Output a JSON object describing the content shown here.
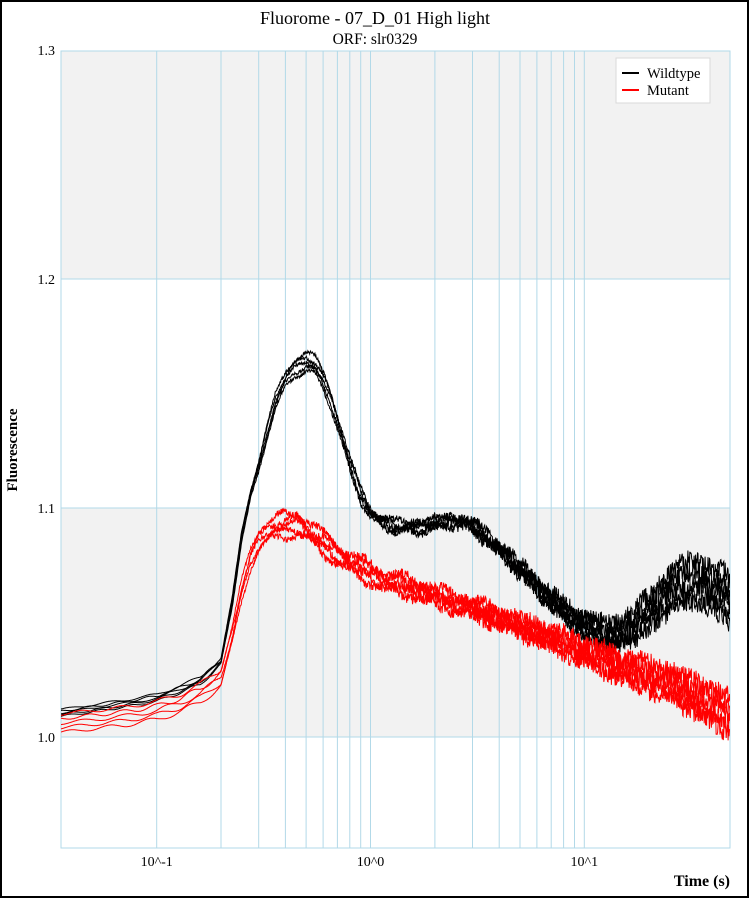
{
  "figure": {
    "title": "Fluorome - 07_D_01 High light",
    "subtitle": "ORF: slr0329"
  },
  "chart_data": {
    "type": "line",
    "x_scale": "log10",
    "title": "Fluorome - 07_D_01 High light",
    "subtitle": "ORF: slr0329",
    "xlabel": "Time (s)",
    "ylabel": "Fluorescence",
    "xlim": [
      0.0357,
      48
    ],
    "ylim": [
      0.9515,
      1.2996
    ],
    "x_ticks": [
      {
        "value": 0.1,
        "label": "10^-1"
      },
      {
        "value": 1,
        "label": "10^0"
      },
      {
        "value": 10,
        "label": "10^1"
      }
    ],
    "y_ticks": [
      {
        "value": 1.0,
        "label": "1.0"
      },
      {
        "value": 1.1,
        "label": "1.1"
      },
      {
        "value": 1.2,
        "label": "1.2"
      },
      {
        "value": 1.3,
        "label": "1.3"
      }
    ],
    "x_gridlines": [
      0.1,
      0.2,
      0.3,
      0.4,
      0.5,
      0.6,
      0.7,
      0.8,
      0.9,
      1,
      2,
      3,
      4,
      5,
      6,
      7,
      8,
      9,
      10
    ],
    "y_gridlines": [
      1.0,
      1.1,
      1.2
    ],
    "bands": [
      {
        "from": 1.2,
        "to": 1.2996
      },
      {
        "from": 1.0,
        "to": 1.1
      }
    ],
    "legend": {
      "position": "top-right",
      "entries": [
        {
          "label": "Wildtype",
          "color": "#000000"
        },
        {
          "label": "Mutant",
          "color": "#ff0000"
        }
      ]
    },
    "style": {
      "grid_color": "#b2d9e8",
      "band_color": "#f2f2f2",
      "plot_bg": "#ffffff",
      "figure_border": "#000000",
      "legend_border": "#d9d9d9"
    },
    "series": [
      {
        "name": "Wildtype",
        "color": "#000000",
        "replicates": 5,
        "keypoints": [
          [
            0.0357,
            1.0105
          ],
          [
            0.05,
            1.0125
          ],
          [
            0.07,
            1.0145
          ],
          [
            0.1,
            1.017
          ],
          [
            0.13,
            1.021
          ],
          [
            0.16,
            1.0245
          ],
          [
            0.2,
            1.033
          ],
          [
            0.225,
            1.058
          ],
          [
            0.25,
            1.088
          ],
          [
            0.275,
            1.106
          ],
          [
            0.3,
            1.118
          ],
          [
            0.33,
            1.134
          ],
          [
            0.36,
            1.147
          ],
          [
            0.4,
            1.156
          ],
          [
            0.44,
            1.161
          ],
          [
            0.5,
            1.164
          ],
          [
            0.55,
            1.162
          ],
          [
            0.6,
            1.156
          ],
          [
            0.65,
            1.148
          ],
          [
            0.7,
            1.138
          ],
          [
            0.8,
            1.119
          ],
          [
            0.9,
            1.106
          ],
          [
            1.0,
            1.098
          ],
          [
            1.1,
            1.0945
          ],
          [
            1.3,
            1.092
          ],
          [
            1.6,
            1.0915
          ],
          [
            2.0,
            1.093
          ],
          [
            2.4,
            1.0945
          ],
          [
            2.8,
            1.0935
          ],
          [
            3.2,
            1.09
          ],
          [
            3.6,
            1.086
          ],
          [
            4.0,
            1.082
          ],
          [
            4.5,
            1.0775
          ],
          [
            5.0,
            1.0735
          ],
          [
            6.0,
            1.066
          ],
          [
            7.0,
            1.06
          ],
          [
            8.0,
            1.0555
          ],
          [
            9.0,
            1.0515
          ],
          [
            10,
            1.049
          ],
          [
            11,
            1.047
          ],
          [
            12,
            1.0455
          ],
          [
            13.5,
            1.0445
          ],
          [
            15,
            1.0455
          ],
          [
            17,
            1.049
          ],
          [
            20,
            1.0545
          ],
          [
            23,
            1.06
          ],
          [
            26,
            1.0645
          ],
          [
            30,
            1.0675
          ],
          [
            34,
            1.0675
          ],
          [
            38,
            1.0655
          ],
          [
            42,
            1.0635
          ],
          [
            45,
            1.0625
          ],
          [
            48,
            1.0575
          ]
        ],
        "spread": [
          [
            0.0357,
            0.0015
          ],
          [
            0.2,
            0.0015
          ],
          [
            0.35,
            0.003
          ],
          [
            0.5,
            0.004
          ],
          [
            0.8,
            0.0028
          ],
          [
            1.2,
            0.002
          ],
          [
            3,
            0.002
          ],
          [
            6,
            0.0028
          ],
          [
            10,
            0.004
          ],
          [
            15,
            0.0055
          ],
          [
            22,
            0.008
          ],
          [
            30,
            0.009
          ],
          [
            48,
            0.0095
          ]
        ],
        "noise": [
          [
            0.0357,
            0
          ],
          [
            0.18,
            0
          ],
          [
            0.3,
            0.0005
          ],
          [
            0.5,
            0.0008
          ],
          [
            0.8,
            0.0012
          ],
          [
            1.5,
            0.0016
          ],
          [
            2.5,
            0.002
          ],
          [
            4,
            0.0028
          ],
          [
            6,
            0.0033
          ],
          [
            10,
            0.0038
          ],
          [
            20,
            0.0045
          ],
          [
            48,
            0.0047
          ]
        ],
        "wobble": [
          [
            0.0357,
            0.0004
          ],
          [
            0.3,
            0.0008
          ],
          [
            0.7,
            0.0012
          ],
          [
            1.5,
            0.0015
          ],
          [
            3,
            0.0012
          ],
          [
            6,
            0.0008
          ],
          [
            48,
            0.0005
          ]
        ]
      },
      {
        "name": "Mutant",
        "color": "#ff0000",
        "replicates": 5,
        "keypoints": [
          [
            0.0357,
            1.006
          ],
          [
            0.05,
            1.0075
          ],
          [
            0.07,
            1.009
          ],
          [
            0.1,
            1.0115
          ],
          [
            0.13,
            1.015
          ],
          [
            0.16,
            1.019
          ],
          [
            0.2,
            1.026
          ],
          [
            0.225,
            1.044
          ],
          [
            0.25,
            1.064
          ],
          [
            0.275,
            1.078
          ],
          [
            0.3,
            1.0855
          ],
          [
            0.33,
            1.0895
          ],
          [
            0.36,
            1.0915
          ],
          [
            0.4,
            1.0925
          ],
          [
            0.45,
            1.093
          ],
          [
            0.5,
            1.091
          ],
          [
            0.55,
            1.0875
          ],
          [
            0.6,
            1.0845
          ],
          [
            0.7,
            1.08
          ],
          [
            0.8,
            1.0765
          ],
          [
            0.9,
            1.0735
          ],
          [
            1.0,
            1.0715
          ],
          [
            1.2,
            1.068
          ],
          [
            1.5,
            1.0655
          ],
          [
            2.0,
            1.0615
          ],
          [
            2.5,
            1.0585
          ],
          [
            3.0,
            1.056
          ],
          [
            4.0,
            1.052
          ],
          [
            5.0,
            1.0485
          ],
          [
            6.0,
            1.0455
          ],
          [
            7.0,
            1.043
          ],
          [
            8.0,
            1.041
          ],
          [
            10,
            1.037
          ],
          [
            12,
            1.034
          ],
          [
            15,
            1.0305
          ],
          [
            18,
            1.028
          ],
          [
            22,
            1.025
          ],
          [
            26,
            1.0225
          ],
          [
            30,
            1.0195
          ],
          [
            35,
            1.0165
          ],
          [
            40,
            1.0135
          ],
          [
            44,
            1.0115
          ],
          [
            48,
            1.009
          ]
        ],
        "spread": [
          [
            0.0357,
            0.004
          ],
          [
            0.2,
            0.0038
          ],
          [
            0.4,
            0.0045
          ],
          [
            0.6,
            0.004
          ],
          [
            1,
            0.0035
          ],
          [
            2,
            0.003
          ],
          [
            5,
            0.0035
          ],
          [
            10,
            0.0045
          ],
          [
            20,
            0.0055
          ],
          [
            30,
            0.0065
          ],
          [
            48,
            0.0075
          ]
        ],
        "noise": [
          [
            0.0357,
            0
          ],
          [
            0.18,
            0
          ],
          [
            0.3,
            0.001
          ],
          [
            0.4,
            0.0015
          ],
          [
            0.8,
            0.002
          ],
          [
            1.5,
            0.0025
          ],
          [
            3,
            0.003
          ],
          [
            6,
            0.0038
          ],
          [
            12,
            0.0042
          ],
          [
            25,
            0.0046
          ],
          [
            48,
            0.0048
          ]
        ],
        "wobble": [
          [
            0.0357,
            0.0006
          ],
          [
            0.3,
            0.0015
          ],
          [
            0.5,
            0.002
          ],
          [
            1,
            0.002
          ],
          [
            2,
            0.0015
          ],
          [
            4,
            0.001
          ],
          [
            48,
            0.0006
          ]
        ]
      }
    ]
  }
}
